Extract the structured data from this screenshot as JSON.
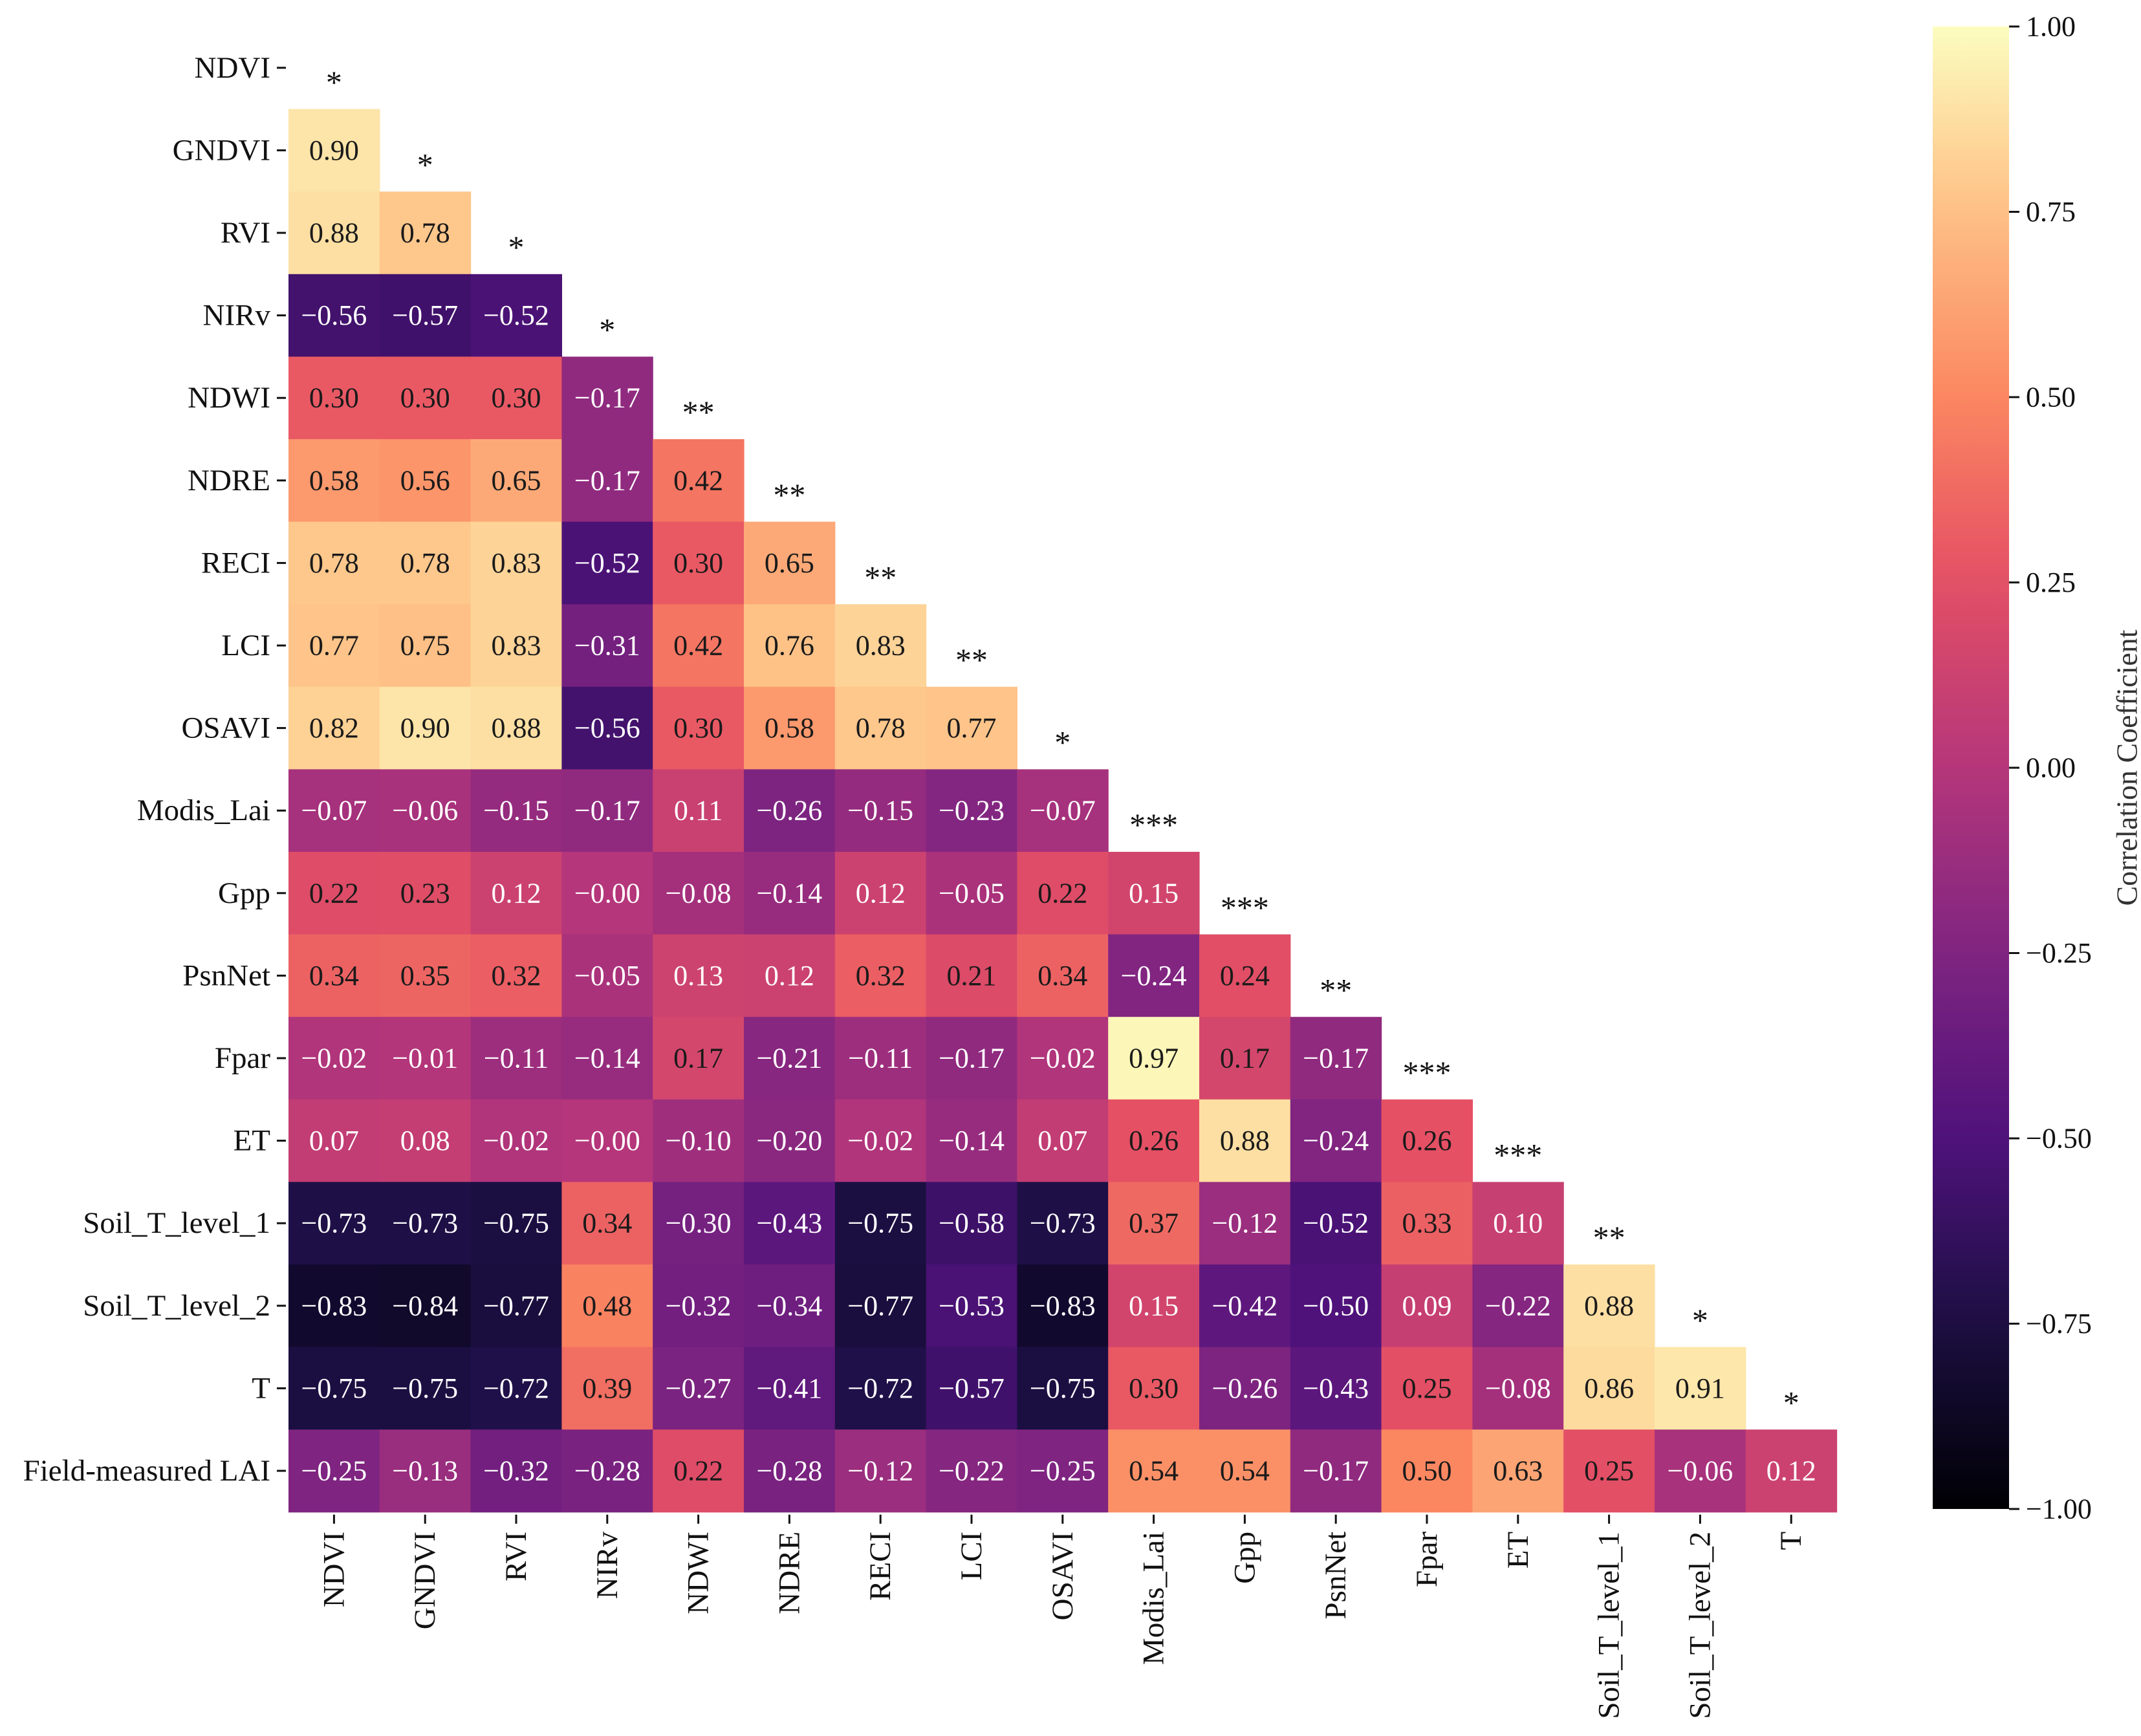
{
  "chart_data": {
    "type": "heatmap",
    "variables": [
      "NDVI",
      "GNDVI",
      "RVI",
      "NIRv",
      "NDWI",
      "NDRE",
      "RECI",
      "LCI",
      "OSAVI",
      "Modis_Lai",
      "Gpp",
      "PsnNet",
      "Fpar",
      "ET",
      "Soil_T_level_1",
      "Soil_T_level_2",
      "T",
      "Field-measured LAI"
    ],
    "column_variables": [
      "NDVI",
      "GNDVI",
      "RVI",
      "NIRv",
      "NDWI",
      "NDRE",
      "RECI",
      "LCI",
      "OSAVI",
      "Modis_Lai",
      "Gpp",
      "PsnNet",
      "Fpar",
      "ET",
      "Soil_T_level_1",
      "Soil_T_level_2",
      "T"
    ],
    "values": [
      [],
      [
        0.9
      ],
      [
        0.88,
        0.78
      ],
      [
        -0.56,
        -0.57,
        -0.52
      ],
      [
        0.3,
        0.3,
        0.3,
        -0.17
      ],
      [
        0.58,
        0.56,
        0.65,
        -0.17,
        0.42
      ],
      [
        0.78,
        0.78,
        0.83,
        -0.52,
        0.3,
        0.65
      ],
      [
        0.77,
        0.75,
        0.83,
        -0.31,
        0.42,
        0.76,
        0.83
      ],
      [
        0.82,
        0.9,
        0.88,
        -0.56,
        0.3,
        0.58,
        0.78,
        0.77
      ],
      [
        -0.07,
        -0.06,
        -0.15,
        -0.17,
        0.11,
        -0.26,
        -0.15,
        -0.23,
        -0.07
      ],
      [
        0.22,
        0.23,
        0.12,
        -0.0,
        -0.08,
        -0.14,
        0.12,
        -0.05,
        0.22,
        0.15
      ],
      [
        0.34,
        0.35,
        0.32,
        -0.05,
        0.13,
        0.12,
        0.32,
        0.21,
        0.34,
        -0.24,
        0.24
      ],
      [
        -0.02,
        -0.01,
        -0.11,
        -0.14,
        0.17,
        -0.21,
        -0.11,
        -0.17,
        -0.02,
        0.97,
        0.17,
        -0.17
      ],
      [
        0.07,
        0.08,
        -0.02,
        -0.0,
        -0.1,
        -0.2,
        -0.02,
        -0.14,
        0.07,
        0.26,
        0.88,
        -0.24,
        0.26
      ],
      [
        -0.73,
        -0.73,
        -0.75,
        0.34,
        -0.3,
        -0.43,
        -0.75,
        -0.58,
        -0.73,
        0.37,
        -0.12,
        -0.52,
        0.33,
        0.1
      ],
      [
        -0.83,
        -0.84,
        -0.77,
        0.48,
        -0.32,
        -0.34,
        -0.77,
        -0.53,
        -0.83,
        0.15,
        -0.42,
        -0.5,
        0.09,
        -0.22,
        0.88
      ],
      [
        -0.75,
        -0.75,
        -0.72,
        0.39,
        -0.27,
        -0.41,
        -0.72,
        -0.57,
        -0.75,
        0.3,
        -0.26,
        -0.43,
        0.25,
        -0.08,
        0.86,
        0.91
      ],
      [
        -0.25,
        -0.13,
        -0.32,
        -0.28,
        0.22,
        -0.28,
        -0.12,
        -0.22,
        -0.25,
        0.54,
        0.54,
        -0.17,
        0.5,
        0.63,
        0.25,
        -0.06,
        0.12
      ]
    ],
    "significance": [
      "*",
      "*",
      "*",
      "*",
      "**",
      "**",
      "**",
      "**",
      "*",
      "***",
      "***",
      "**",
      "***",
      "***",
      "**",
      "*",
      "*"
    ],
    "colormap": "magma",
    "colorbar": {
      "label": "Correlation Coefficient",
      "range": [
        -1.0,
        1.0
      ],
      "ticks": [
        "1.00",
        "0.75",
        "0.50",
        "0.25",
        "0.00",
        "−0.25",
        "−0.50",
        "−0.75",
        "−1.00"
      ],
      "tick_values": [
        1.0,
        0.75,
        0.5,
        0.25,
        0.0,
        -0.25,
        -0.5,
        -0.75,
        -1.0
      ]
    }
  }
}
